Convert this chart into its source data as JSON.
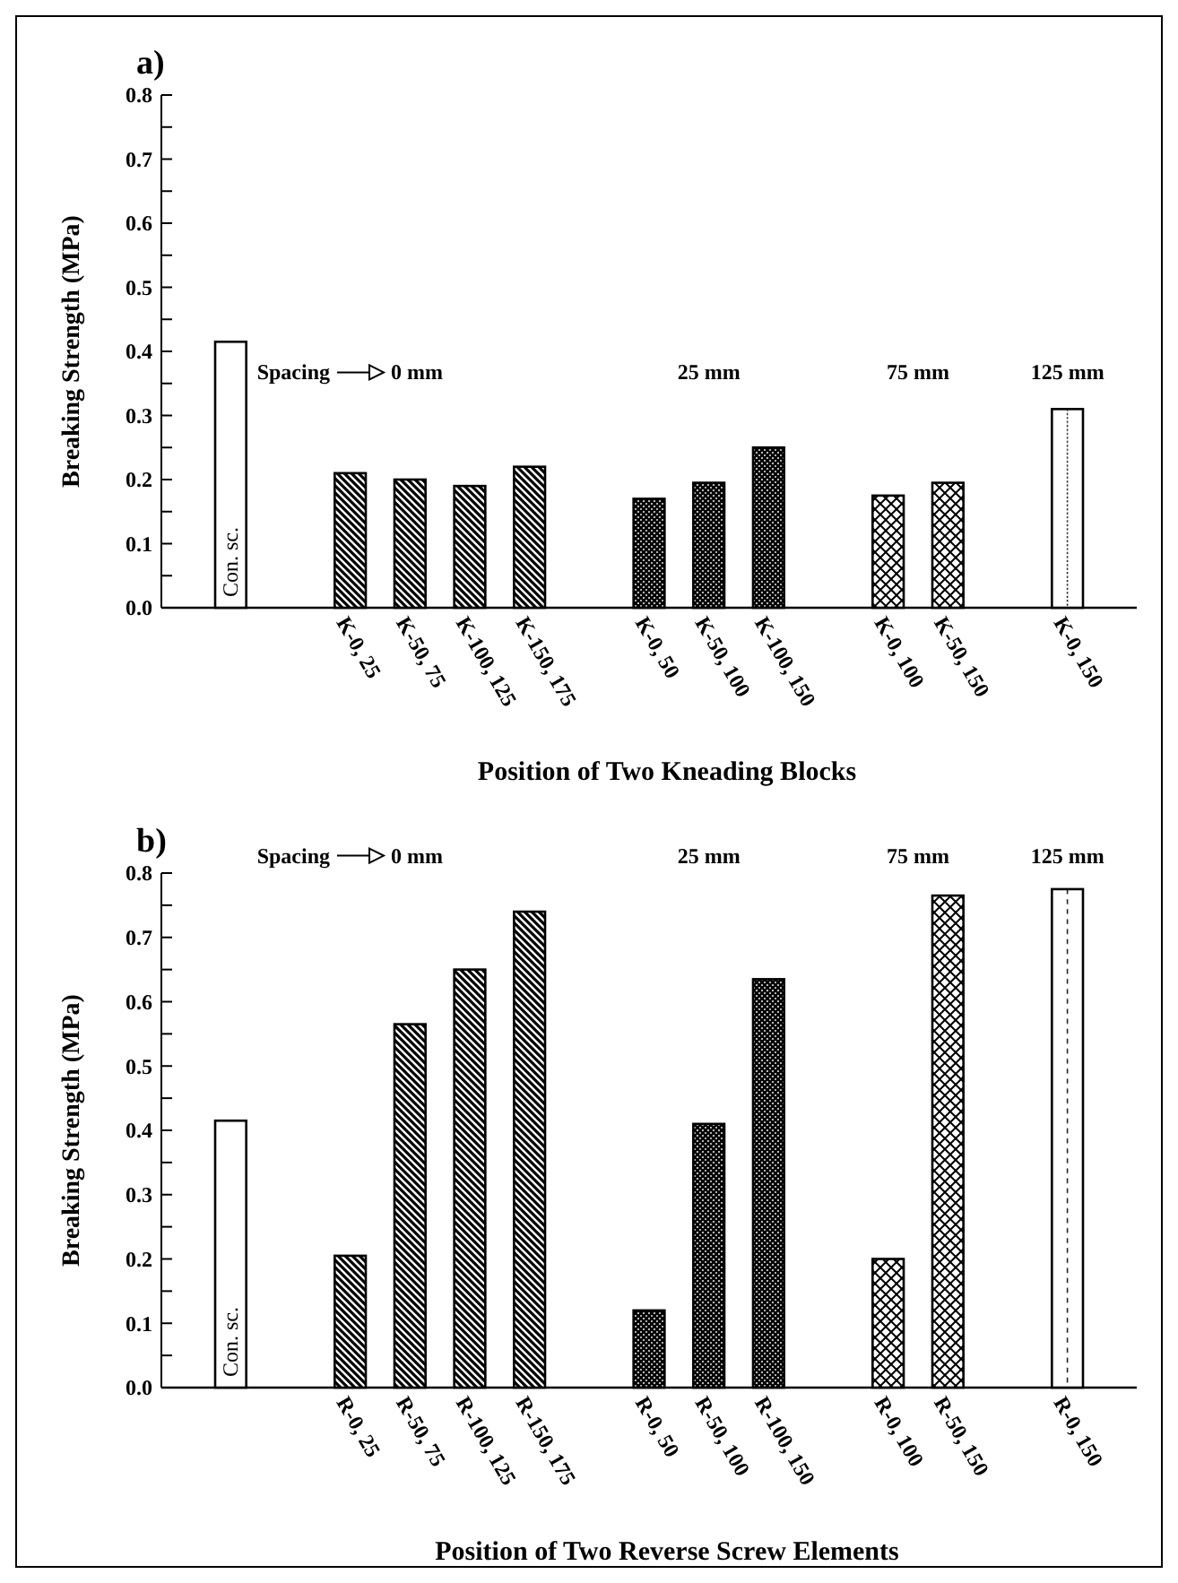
{
  "chart_data": [
    {
      "type": "bar",
      "title": "a)",
      "ylabel": "Breaking Strength (MPa)",
      "xlabel": "Position of Two Kneading Blocks",
      "categories": [
        "Con. sc.",
        null,
        "K-0, 25",
        "K-50, 75",
        "K-100, 125",
        "K-150, 175",
        null,
        "K-0, 50",
        "K-50, 100",
        "K-100, 150",
        null,
        "K-0, 100",
        "K-50, 150",
        null,
        "K-0, 150"
      ],
      "series": [
        {
          "color": "#000000",
          "values": [
            0.415,
            null,
            null,
            null,
            null,
            null,
            null,
            null,
            null,
            null,
            null,
            null,
            null,
            null,
            null
          ]
        },
        {
          "color": "#000000",
          "values": [
            null,
            null,
            0.21,
            0.2,
            0.19,
            0.22,
            null,
            null,
            null,
            null,
            null,
            null,
            null,
            null,
            null
          ]
        },
        {
          "color": "#000000",
          "values": [
            null,
            null,
            null,
            null,
            null,
            null,
            null,
            0.17,
            0.195,
            0.25,
            null,
            null,
            null,
            null,
            null
          ]
        },
        {
          "color": "#000000",
          "values": [
            null,
            null,
            null,
            null,
            null,
            null,
            null,
            null,
            null,
            null,
            null,
            0.175,
            0.195,
            null,
            null
          ]
        },
        {
          "color": "#000000",
          "values": [
            null,
            null,
            null,
            null,
            null,
            null,
            null,
            null,
            null,
            null,
            null,
            null,
            null,
            null,
            0.31
          ]
        }
      ],
      "annotations": [
        "Spacing",
        "0 mm",
        "25 mm",
        "75 mm",
        "125 mm"
      ],
      "ylim": [
        0,
        0.8
      ],
      "yticks": [
        {
          "value": 0,
          "label": "0.0"
        },
        {
          "value": 0.05,
          "label": null
        },
        {
          "value": 0.1,
          "label": "0.1"
        },
        {
          "value": 0.15,
          "label": null
        },
        {
          "value": 0.2,
          "label": "0.2"
        },
        {
          "value": 0.25,
          "label": null
        },
        {
          "value": 0.3,
          "label": "0.3"
        },
        {
          "value": 0.35,
          "label": null
        },
        {
          "value": 0.4,
          "label": "0.4"
        },
        {
          "value": 0.45,
          "label": null
        },
        {
          "value": 0.5,
          "label": "0.5"
        },
        {
          "value": 0.55,
          "label": null
        },
        {
          "value": 0.6,
          "label": "0.6"
        },
        {
          "value": 0.65,
          "label": null
        },
        {
          "value": 0.7,
          "label": "0.7"
        },
        {
          "value": 0.75,
          "label": null
        },
        {
          "value": 0.8,
          "label": "0.8"
        }
      ]
    },
    {
      "type": "bar",
      "title": "b)",
      "ylabel": "Breaking Strength (MPa)",
      "xlabel": "Position of Two Reverse Screw Elements",
      "categories": [
        "Con. sc.",
        null,
        "R-0, 25",
        "R-50, 75",
        "R-100, 125",
        "R-150, 175",
        null,
        "R-0, 50",
        "R-50, 100",
        "R-100, 150",
        null,
        "R-0, 100",
        "R-50, 150",
        null,
        "R-0, 150"
      ],
      "series": [
        {
          "color": "#000000",
          "values": [
            0.415,
            null,
            null,
            null,
            null,
            null,
            null,
            null,
            null,
            null,
            null,
            null,
            null,
            null,
            null
          ]
        },
        {
          "color": "#000000",
          "values": [
            null,
            null,
            0.205,
            0.565,
            0.65,
            0.74,
            null,
            null,
            null,
            null,
            null,
            null,
            null,
            null,
            null
          ]
        },
        {
          "color": "#000000",
          "values": [
            null,
            null,
            null,
            null,
            null,
            null,
            null,
            0.12,
            0.41,
            0.635,
            null,
            null,
            null,
            null,
            null
          ]
        },
        {
          "color": "#000000",
          "values": [
            null,
            null,
            null,
            null,
            null,
            null,
            null,
            null,
            null,
            null,
            null,
            0.2,
            0.765,
            null,
            null
          ]
        },
        {
          "color": "#000000",
          "values": [
            null,
            null,
            null,
            null,
            null,
            null,
            null,
            null,
            null,
            null,
            null,
            null,
            null,
            null,
            0.775
          ]
        }
      ],
      "annotations": [
        "Spacing",
        "0 mm",
        "25 mm",
        "75 mm",
        "125 mm"
      ],
      "ylim": [
        0,
        0.8
      ],
      "yticks": [
        {
          "value": 0,
          "label": "0.0"
        },
        {
          "value": 0.05,
          "label": null
        },
        {
          "value": 0.1,
          "label": "0.1"
        },
        {
          "value": 0.15,
          "label": null
        },
        {
          "value": 0.2,
          "label": "0.2"
        },
        {
          "value": 0.25,
          "label": null
        },
        {
          "value": 0.3,
          "label": "0.3"
        },
        {
          "value": 0.35,
          "label": null
        },
        {
          "value": 0.4,
          "label": "0.4"
        },
        {
          "value": 0.45,
          "label": null
        },
        {
          "value": 0.5,
          "label": "0.5"
        },
        {
          "value": 0.55,
          "label": null
        },
        {
          "value": 0.6,
          "label": "0.6"
        },
        {
          "value": 0.65,
          "label": null
        },
        {
          "value": 0.7,
          "label": "0.7"
        },
        {
          "value": 0.75,
          "label": null
        },
        {
          "value": 0.8,
          "label": "0.8"
        }
      ]
    }
  ]
}
